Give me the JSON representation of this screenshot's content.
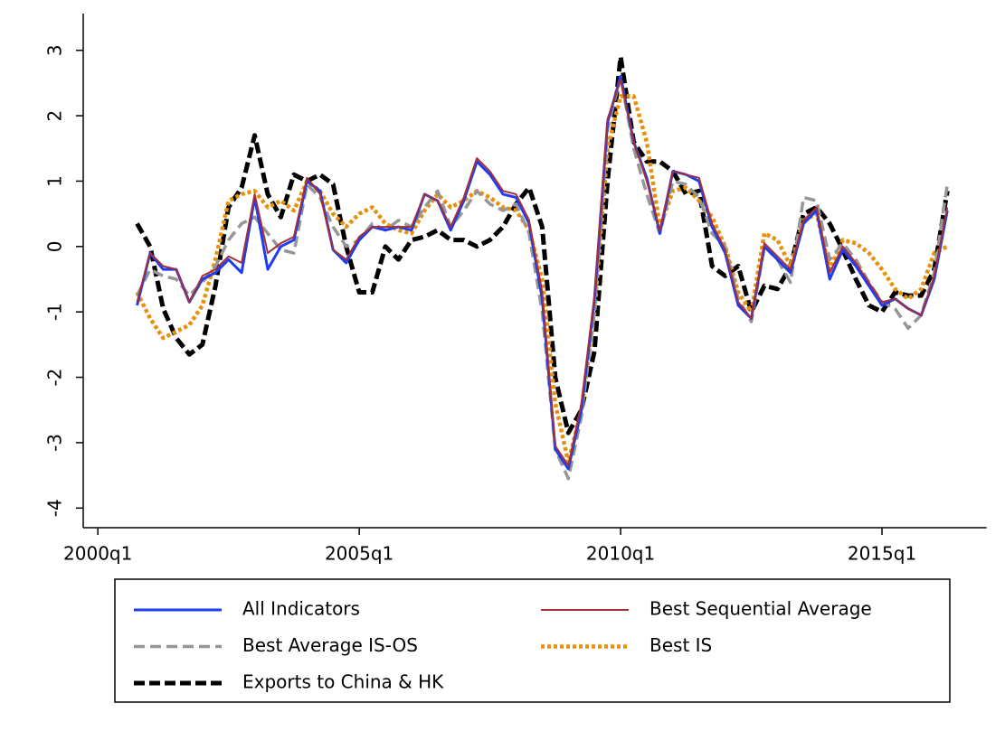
{
  "chart_data": {
    "type": "line",
    "x": [
      2000.75,
      2001,
      2001.25,
      2001.5,
      2001.75,
      2002,
      2002.25,
      2002.5,
      2002.75,
      2003,
      2003.25,
      2003.5,
      2003.75,
      2004,
      2004.25,
      2004.5,
      2004.75,
      2005,
      2005.25,
      2005.5,
      2005.75,
      2006,
      2006.25,
      2006.5,
      2006.75,
      2007,
      2007.25,
      2007.5,
      2007.75,
      2008,
      2008.25,
      2008.5,
      2008.75,
      2009,
      2009.25,
      2009.5,
      2009.75,
      2010,
      2010.25,
      2010.5,
      2010.75,
      2011,
      2011.25,
      2011.5,
      2011.75,
      2012,
      2012.25,
      2012.5,
      2012.75,
      2013,
      2013.25,
      2013.5,
      2013.75,
      2014,
      2014.25,
      2014.5,
      2014.75,
      2015,
      2015.25,
      2015.5,
      2015.75,
      2016,
      2016.25
    ],
    "xlim": [
      1999.72,
      2017.0
    ],
    "xticks": [
      {
        "value": 2000,
        "label": "2000q1"
      },
      {
        "value": 2005,
        "label": "2005q1"
      },
      {
        "value": 2010,
        "label": "2010q1"
      },
      {
        "value": 2015,
        "label": "2015q1"
      }
    ],
    "ylim": [
      -4.3,
      3.3
    ],
    "yticks": [
      -4,
      -3,
      -2,
      -1,
      0,
      1,
      2,
      3
    ],
    "series": [
      {
        "name": "All Indicators",
        "color": "#1f3cf0",
        "style": "solid",
        "values": [
          -0.9,
          -0.1,
          -0.35,
          -0.35,
          -0.85,
          -0.5,
          -0.4,
          -0.2,
          -0.4,
          0.75,
          -0.35,
          0.0,
          0.1,
          1.0,
          0.85,
          -0.05,
          -0.25,
          0.1,
          0.3,
          0.25,
          0.3,
          0.25,
          0.8,
          0.7,
          0.25,
          0.7,
          1.3,
          1.1,
          0.8,
          0.75,
          0.35,
          -0.8,
          -3.1,
          -3.4,
          -2.5,
          -0.8,
          1.9,
          2.6,
          1.6,
          1.05,
          0.2,
          1.15,
          1.1,
          1.0,
          0.3,
          -0.1,
          -0.9,
          -1.1,
          0.0,
          -0.2,
          -0.4,
          0.35,
          0.55,
          -0.5,
          -0.05,
          -0.3,
          -0.6,
          -0.9,
          -0.8,
          -0.95,
          -1.05,
          -0.5,
          0.55
        ]
      },
      {
        "name": "Best Sequential Average",
        "color": "#a0303a",
        "style": "thin",
        "values": [
          -0.85,
          -0.1,
          -0.3,
          -0.35,
          -0.85,
          -0.45,
          -0.35,
          -0.15,
          -0.25,
          0.8,
          -0.1,
          0.05,
          0.15,
          1.05,
          0.8,
          -0.05,
          -0.2,
          0.15,
          0.3,
          0.3,
          0.3,
          0.3,
          0.8,
          0.7,
          0.3,
          0.75,
          1.35,
          1.15,
          0.85,
          0.8,
          0.4,
          -0.7,
          -3.05,
          -3.35,
          -2.4,
          -0.75,
          1.95,
          2.55,
          1.6,
          1.0,
          0.25,
          1.15,
          1.1,
          1.05,
          0.35,
          -0.05,
          -0.85,
          -1.1,
          0.05,
          -0.15,
          -0.35,
          0.4,
          0.6,
          -0.4,
          0.0,
          -0.25,
          -0.55,
          -0.85,
          -0.8,
          -0.95,
          -1.05,
          -0.45,
          0.6
        ]
      },
      {
        "name": "Best Average IS-OS",
        "color": "#969696",
        "style": "dashed",
        "values": [
          -0.75,
          -0.35,
          -0.45,
          -0.5,
          -0.75,
          -0.55,
          -0.3,
          0.1,
          0.35,
          0.45,
          0.2,
          -0.05,
          -0.1,
          0.95,
          0.75,
          0.3,
          0.0,
          0.1,
          0.35,
          0.25,
          0.4,
          0.3,
          0.6,
          0.85,
          0.3,
          0.55,
          0.85,
          0.65,
          0.55,
          0.65,
          0.2,
          -1.0,
          -3.1,
          -3.55,
          -2.6,
          -1.0,
          1.8,
          2.6,
          1.5,
          0.8,
          0.2,
          1.0,
          0.95,
          0.75,
          0.2,
          0.0,
          -0.8,
          -1.15,
          0.0,
          -0.2,
          -0.55,
          0.75,
          0.7,
          -0.2,
          0.05,
          -0.2,
          -0.55,
          -0.85,
          -0.95,
          -1.25,
          -1.05,
          -0.4,
          0.95
        ]
      },
      {
        "name": "Best IS",
        "color": "#e8900c",
        "style": "dotted",
        "values": [
          -0.7,
          -1.1,
          -1.4,
          -1.3,
          -1.2,
          -0.9,
          -0.2,
          0.7,
          0.8,
          0.85,
          0.6,
          0.7,
          0.55,
          1.0,
          0.85,
          0.5,
          0.3,
          0.5,
          0.6,
          0.35,
          0.25,
          0.2,
          0.55,
          0.8,
          0.6,
          0.7,
          0.85,
          0.75,
          0.6,
          0.55,
          0.25,
          -0.5,
          -2.4,
          -3.3,
          -2.5,
          -1.0,
          1.5,
          2.3,
          2.3,
          1.6,
          0.3,
          0.85,
          0.9,
          0.7,
          0.45,
          0.0,
          -0.7,
          -1.0,
          0.2,
          0.1,
          -0.3,
          0.4,
          0.5,
          -0.35,
          0.1,
          0.05,
          -0.1,
          -0.35,
          -0.65,
          -0.8,
          -0.65,
          -0.1,
          0.0
        ]
      },
      {
        "name": "Exports to China & HK",
        "color": "#000000",
        "style": "bold-dashed",
        "values": [
          0.35,
          0.0,
          -0.95,
          -1.4,
          -1.65,
          -1.5,
          -0.6,
          0.6,
          0.9,
          1.7,
          0.8,
          0.45,
          1.1,
          1.0,
          1.1,
          0.95,
          0.0,
          -0.7,
          -0.7,
          0.0,
          -0.2,
          0.1,
          0.15,
          0.25,
          0.1,
          0.1,
          0.0,
          0.1,
          0.3,
          0.65,
          0.9,
          0.3,
          -2.0,
          -2.85,
          -2.5,
          -1.6,
          1.0,
          2.9,
          1.6,
          1.3,
          1.3,
          1.15,
          0.8,
          0.85,
          -0.3,
          -0.45,
          -0.3,
          -1.0,
          -0.6,
          -0.65,
          -0.3,
          0.5,
          0.6,
          0.35,
          -0.05,
          -0.5,
          -0.9,
          -1.0,
          -0.7,
          -0.75,
          -0.75,
          -0.35,
          0.85
        ]
      }
    ]
  }
}
